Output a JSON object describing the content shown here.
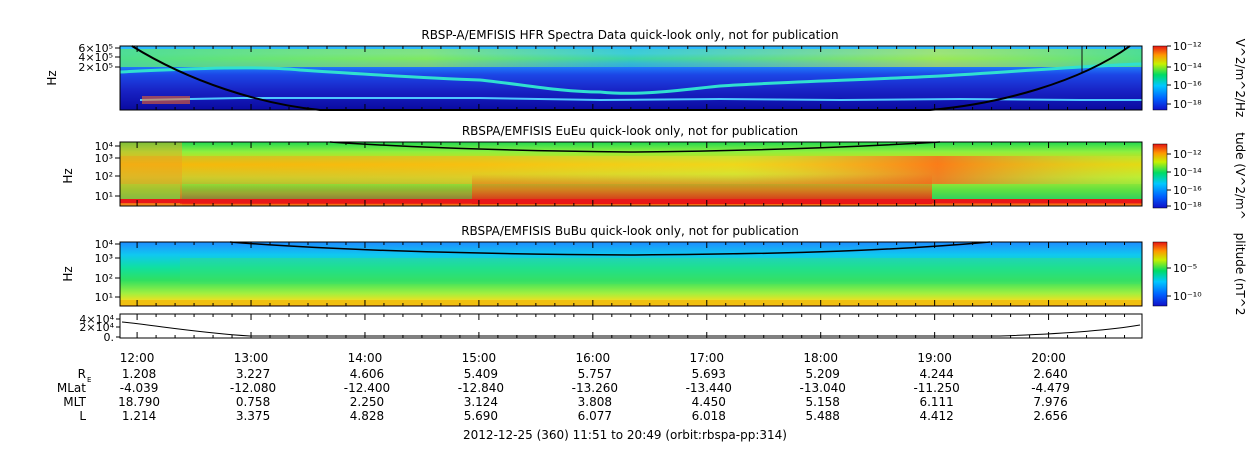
{
  "chart_data": {
    "type": "heatmap",
    "panels": [
      {
        "id": "hfr",
        "title": "RBSP-A/EMFISIS  HFR Spectra Data quick-look only, not for publication",
        "ylabel": "Hz",
        "yticks": [
          "6×10⁵",
          "4×10⁵",
          "2×10⁵"
        ],
        "colorbar_label": "V^2/m^2/Hz",
        "colorbar_ticks": [
          "10⁻¹²",
          "10⁻¹⁴",
          "10⁻¹⁶",
          "10⁻¹⁸"
        ]
      },
      {
        "id": "eueu",
        "title": "RBSPA/EMFISIS  EuEu quick-look only, not for publication",
        "ylabel": "Hz",
        "yticks": [
          "10⁴",
          "10³",
          "10²",
          "10¹"
        ],
        "colorbar_label": "tude (V^2/m^",
        "colorbar_ticks": [
          "10⁻¹²",
          "10⁻¹⁴",
          "10⁻¹⁶",
          "10⁻¹⁸"
        ]
      },
      {
        "id": "bubu",
        "title": "RBSPA/EMFISIS  BuBu quick-look only, not for publication",
        "ylabel": "Hz",
        "yticks": [
          "10⁴",
          "10³",
          "10²",
          "10¹"
        ],
        "colorbar_label": "plitude (nT^2",
        "colorbar_ticks": [
          "10⁻⁵",
          "10⁻¹⁰"
        ]
      }
    ],
    "line_panel": {
      "yticks": [
        "4×10⁴",
        "2×10⁴",
        "0."
      ]
    },
    "x_ticks": [
      "12:00",
      "13:00",
      "14:00",
      "15:00",
      "16:00",
      "17:00",
      "18:00",
      "19:00",
      "20:00"
    ],
    "x_hours": [
      12,
      13,
      14,
      15,
      16,
      17,
      18,
      19,
      20
    ],
    "x_range_hours": [
      11.85,
      20.82
    ],
    "ephemeris": [
      {
        "label": "R",
        "sub": "E",
        "values": [
          "1.208",
          "3.227",
          "4.606",
          "5.409",
          "5.757",
          "5.693",
          "5.209",
          "4.244",
          "2.640"
        ]
      },
      {
        "label": "MLat",
        "values": [
          "-4.039",
          "-12.080",
          "-12.400",
          "-12.840",
          "-13.260",
          "-13.440",
          "-13.040",
          "-11.250",
          "-4.479"
        ]
      },
      {
        "label": "MLT",
        "values": [
          "18.790",
          "0.758",
          "2.250",
          "3.124",
          "3.808",
          "4.450",
          "5.158",
          "6.111",
          "7.976"
        ]
      },
      {
        "label": "L",
        "values": [
          "1.214",
          "3.375",
          "4.828",
          "5.690",
          "6.077",
          "6.018",
          "5.488",
          "4.412",
          "2.656"
        ]
      }
    ],
    "footer": "2012-12-25 (360) 11:51 to 20:49 (orbit:rbspa-pp:314)"
  }
}
